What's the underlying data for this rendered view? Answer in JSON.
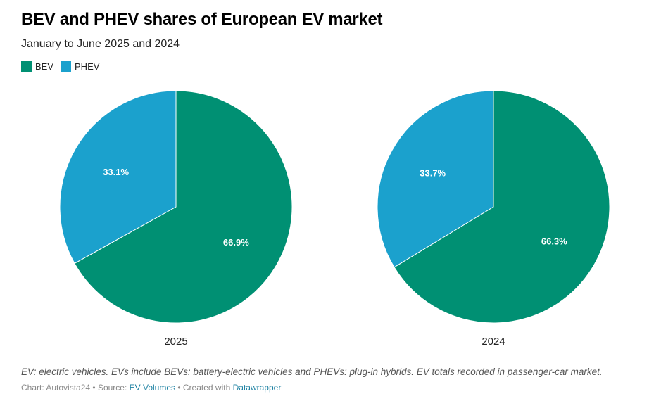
{
  "colors": {
    "BEV": "#009073",
    "PHEV": "#1ba1cd"
  },
  "legend": [
    {
      "key": "BEV",
      "label": "BEV"
    },
    {
      "key": "PHEV",
      "label": "PHEV"
    }
  ],
  "footer": {
    "notes": "EV: electric vehicles. EVs include BEVs: battery-electric vehicles and PHEVs: plug-in hybrids. EV totals recorded in passenger-car market.",
    "chart_prefix": "Chart: Autovista24",
    "source_prefix": "Source:",
    "source_link": "EV Volumes",
    "created_prefix": "Created with",
    "created_link": "Datawrapper",
    "separator": " • "
  },
  "chart_data": {
    "type": "pie",
    "title": "BEV and PHEV shares of European EV market",
    "subtitle": "January to June 2025 and 2024",
    "legend_position": "top-left",
    "unit": "%",
    "charts": [
      {
        "label": "2025",
        "slices": [
          {
            "name": "BEV",
            "value": 66.9,
            "label": "66.9%"
          },
          {
            "name": "PHEV",
            "value": 33.1,
            "label": "33.1%"
          }
        ]
      },
      {
        "label": "2024",
        "slices": [
          {
            "name": "BEV",
            "value": 66.3,
            "label": "66.3%"
          },
          {
            "name": "PHEV",
            "value": 33.7,
            "label": "33.7%"
          }
        ]
      }
    ]
  }
}
